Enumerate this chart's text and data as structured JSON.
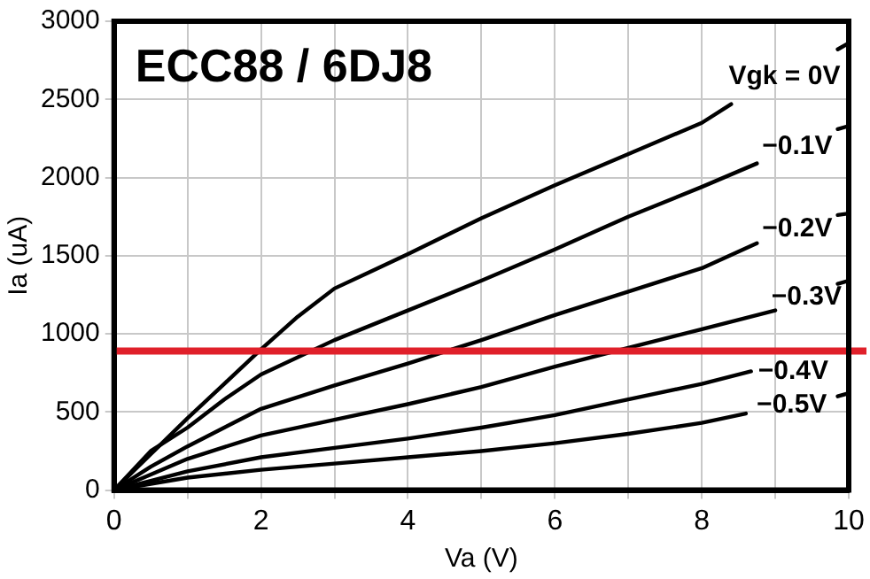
{
  "chart_data": {
    "type": "line",
    "title": "ECC88 / 6DJ8",
    "xlabel": "Va (V)",
    "ylabel": "Ia (uA)",
    "xlim": [
      0,
      10
    ],
    "xticks": [
      0,
      {
        "value": 1,
        "label": null
      },
      2,
      {
        "value": 3,
        "label": null
      },
      4,
      {
        "value": 5,
        "label": null
      },
      6,
      {
        "value": 7,
        "label": null
      },
      8,
      {
        "value": 9,
        "label": null
      },
      10
    ],
    "ylim": [
      0,
      3000
    ],
    "yticks": [
      0,
      500,
      1000,
      1500,
      2000,
      2500,
      3000
    ],
    "grid": true,
    "legend": false,
    "marker": "none",
    "line_style": "solid",
    "series": [
      {
        "name": "Vgk = 0V",
        "color": "#000000",
        "x": [
          0,
          0.5,
          1,
          1.5,
          2,
          2.5,
          3,
          3.5,
          4,
          5,
          6,
          7,
          8,
          8.4,
          9.1,
          9.85,
          10
        ],
        "values": [
          0,
          230,
          460,
          680,
          900,
          1110,
          1290,
          1400,
          1510,
          1740,
          1950,
          2150,
          2350,
          2470,
          null,
          2820,
          2860
        ]
      },
      {
        "name": "−0.1V",
        "color": "#000000",
        "x": [
          0,
          0.5,
          1,
          1.5,
          2,
          3,
          4,
          5,
          6,
          7,
          8,
          8.75,
          9.3,
          9.85,
          10
        ],
        "values": [
          0,
          250,
          400,
          580,
          740,
          960,
          1150,
          1340,
          1540,
          1750,
          1940,
          2090,
          null,
          2310,
          2330
        ]
      },
      {
        "name": "−0.2V",
        "color": "#000000",
        "x": [
          0,
          0.5,
          1,
          2,
          3,
          4,
          5,
          6,
          7,
          8,
          8.75,
          9.3,
          9.85,
          10
        ],
        "values": [
          0,
          150,
          280,
          520,
          670,
          810,
          960,
          1120,
          1270,
          1420,
          1580,
          null,
          1760,
          1770
        ]
      },
      {
        "name": "−0.3V",
        "color": "#000000",
        "x": [
          0,
          0.5,
          1,
          2,
          3,
          4,
          5,
          6,
          7,
          8,
          9,
          9.4,
          9.85,
          10
        ],
        "values": [
          0,
          100,
          200,
          350,
          450,
          550,
          660,
          790,
          910,
          1030,
          1150,
          null,
          1320,
          1340
        ]
      },
      {
        "name": "−0.4V",
        "color": "#000000",
        "x": [
          0,
          0.5,
          1,
          2,
          3,
          4,
          5,
          6,
          7,
          8,
          8.67
        ],
        "values": [
          0,
          60,
          120,
          210,
          270,
          330,
          400,
          480,
          580,
          680,
          760
        ]
      },
      {
        "name": "−0.5V",
        "color": "#000000",
        "x": [
          0,
          0.5,
          1,
          2,
          3,
          4,
          5,
          6,
          7,
          8,
          8.6,
          9.2,
          9.85,
          10
        ],
        "values": [
          0,
          40,
          80,
          130,
          170,
          210,
          250,
          300,
          360,
          430,
          490,
          null,
          600,
          620
        ]
      }
    ],
    "ref_lines": [
      {
        "axis": "y",
        "value": 890,
        "color": "#e0202a",
        "line_style": "solid"
      }
    ]
  }
}
